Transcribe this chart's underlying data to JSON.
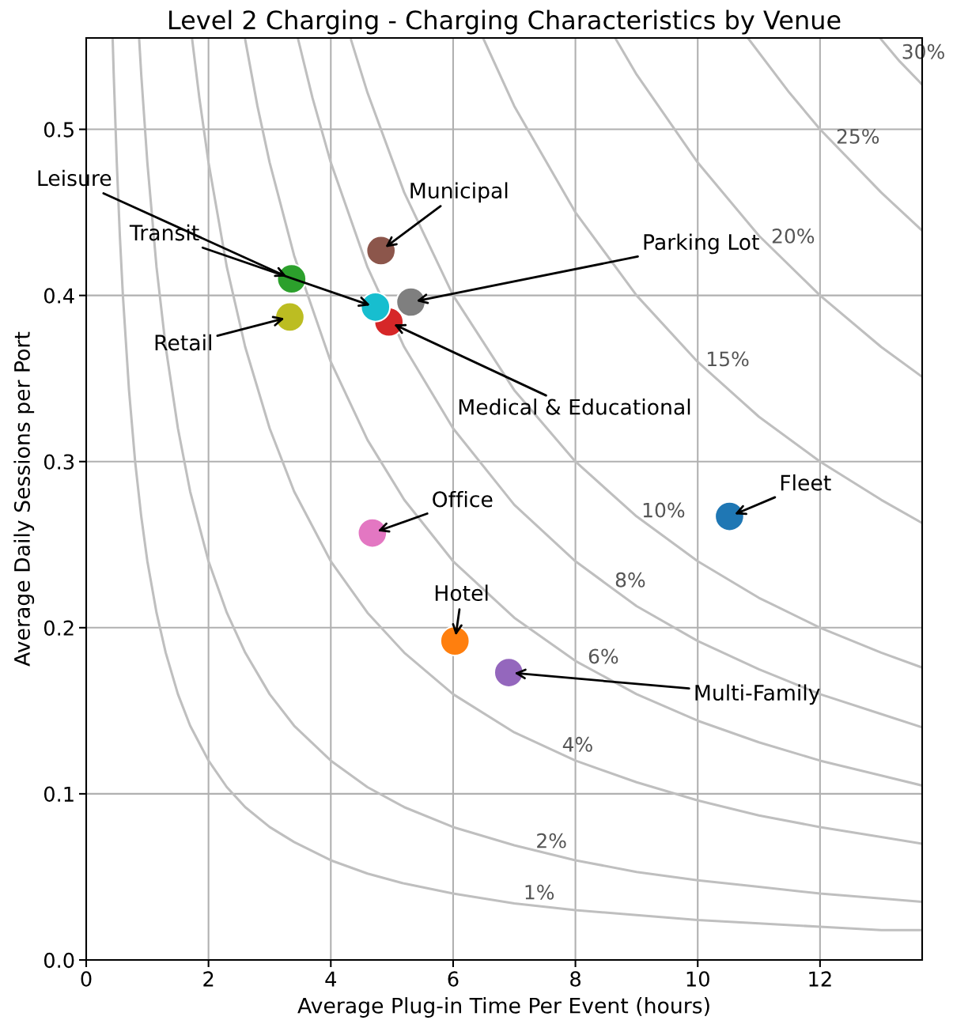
{
  "chart_data": {
    "type": "scatter",
    "title": "Level 2 Charging - Charging Characteristics by Venue",
    "xlabel": "Average Plug-in Time Per Event (hours)",
    "ylabel": "Average Daily Sessions per Port",
    "xlim": [
      0,
      13.67
    ],
    "ylim": [
      0,
      0.555
    ],
    "xticks": [
      0,
      2,
      4,
      6,
      8,
      10,
      12
    ],
    "yticks": [
      {
        "value": 0,
        "label": "0.0"
      },
      0.1,
      0.2,
      0.3,
      0.4,
      0.5
    ],
    "grid": true,
    "series": [
      {
        "type": "line",
        "color": "#bfbfbf",
        "x": [
          0.433,
          0.45,
          0.5,
          0.55,
          0.6,
          0.7,
          0.8,
          0.9,
          1.0,
          1.15,
          1.3,
          1.5,
          1.7,
          2.0,
          2.3,
          2.6,
          3.0,
          3.4,
          4.0,
          4.6,
          5.2,
          6.0,
          7.0,
          8.0,
          9.0,
          10,
          11,
          12,
          13,
          13.67
        ],
        "values": [
          0.554,
          0.533,
          0.48,
          0.436,
          0.4,
          0.343,
          0.3,
          0.267,
          0.24,
          0.209,
          0.185,
          0.16,
          0.141,
          0.12,
          0.104,
          0.092,
          0.08,
          0.071,
          0.06,
          0.052,
          0.046,
          0.04,
          0.034,
          0.03,
          0.027,
          0.024,
          0.022,
          0.02,
          0.018,
          0.018
        ]
      },
      {
        "type": "line",
        "color": "#bfbfbf",
        "x": [
          0.865,
          0.9,
          1.0,
          1.15,
          1.3,
          1.5,
          1.7,
          2.0,
          2.3,
          2.6,
          3.0,
          3.4,
          4.0,
          4.6,
          5.2,
          6.0,
          7.0,
          8.0,
          9.0,
          10,
          11,
          12,
          13,
          13.67
        ],
        "values": [
          0.555,
          0.533,
          0.48,
          0.417,
          0.369,
          0.32,
          0.282,
          0.24,
          0.209,
          0.185,
          0.16,
          0.141,
          0.12,
          0.104,
          0.092,
          0.08,
          0.069,
          0.06,
          0.053,
          0.048,
          0.044,
          0.04,
          0.037,
          0.035
        ]
      },
      {
        "type": "line",
        "color": "#bfbfbf",
        "x": [
          1.73,
          1.85,
          2.0,
          2.3,
          2.6,
          3.0,
          3.4,
          4.0,
          4.6,
          5.2,
          6.0,
          7.0,
          8.0,
          9.0,
          10,
          11,
          12,
          13,
          13.67
        ],
        "values": [
          0.555,
          0.519,
          0.48,
          0.417,
          0.369,
          0.32,
          0.282,
          0.24,
          0.209,
          0.185,
          0.16,
          0.137,
          0.12,
          0.107,
          0.096,
          0.087,
          0.08,
          0.074,
          0.07
        ]
      },
      {
        "type": "line",
        "color": "#bfbfbf",
        "x": [
          2.6,
          2.8,
          3.0,
          3.4,
          4.0,
          4.6,
          5.2,
          6.0,
          7.0,
          8.0,
          9.0,
          10,
          11,
          12,
          13,
          13.67
        ],
        "values": [
          0.554,
          0.514,
          0.48,
          0.424,
          0.36,
          0.313,
          0.277,
          0.24,
          0.206,
          0.18,
          0.16,
          0.144,
          0.131,
          0.12,
          0.111,
          0.105
        ]
      },
      {
        "type": "line",
        "color": "#bfbfbf",
        "x": [
          3.46,
          3.7,
          4.0,
          4.6,
          5.2,
          6.0,
          7.0,
          8.0,
          9.0,
          10,
          11,
          12,
          13,
          13.67
        ],
        "values": [
          0.555,
          0.519,
          0.48,
          0.417,
          0.369,
          0.32,
          0.274,
          0.24,
          0.213,
          0.192,
          0.175,
          0.16,
          0.148,
          0.14
        ]
      },
      {
        "type": "line",
        "color": "#bfbfbf",
        "x": [
          4.33,
          4.6,
          5.2,
          6.0,
          7.0,
          8.0,
          9.0,
          10,
          11,
          12,
          13,
          13.67
        ],
        "values": [
          0.554,
          0.522,
          0.462,
          0.4,
          0.343,
          0.3,
          0.267,
          0.24,
          0.218,
          0.2,
          0.185,
          0.176
        ]
      },
      {
        "type": "line",
        "color": "#bfbfbf",
        "x": [
          6.49,
          7.0,
          8.0,
          9.0,
          10,
          11,
          12,
          13,
          13.67
        ],
        "values": [
          0.555,
          0.514,
          0.45,
          0.4,
          0.36,
          0.327,
          0.3,
          0.277,
          0.263
        ]
      },
      {
        "type": "line",
        "color": "#bfbfbf",
        "x": [
          8.65,
          9.0,
          10,
          11,
          12,
          13,
          13.67
        ],
        "values": [
          0.555,
          0.533,
          0.48,
          0.436,
          0.4,
          0.369,
          0.351
        ]
      },
      {
        "type": "line",
        "color": "#bfbfbf",
        "x": [
          10.82,
          11.5,
          12,
          13,
          13.67
        ],
        "values": [
          0.555,
          0.522,
          0.5,
          0.462,
          0.439
        ]
      },
      {
        "type": "line",
        "color": "#bfbfbf",
        "x": [
          12.98,
          13.3,
          13.67
        ],
        "values": [
          0.555,
          0.541,
          0.527
        ]
      },
      {
        "name": "Fleet",
        "color": "#1f77b4",
        "marker": "circle",
        "x": [
          10.52
        ],
        "values": [
          0.267
        ]
      },
      {
        "name": "Hotel",
        "color": "#ff7f0e",
        "marker": "circle",
        "x": [
          6.03
        ],
        "values": [
          0.192
        ]
      },
      {
        "name": "Leisure",
        "color": "#2ca02c",
        "marker": "circle",
        "x": [
          3.36
        ],
        "values": [
          0.41
        ]
      },
      {
        "name": "Medical & Educational",
        "color": "#d62728",
        "marker": "circle",
        "x": [
          4.95
        ],
        "values": [
          0.384
        ]
      },
      {
        "name": "Multi-Family",
        "color": "#9467bd",
        "marker": "circle",
        "x": [
          6.91
        ],
        "values": [
          0.173
        ]
      },
      {
        "name": "Municipal",
        "color": "#8c564b",
        "marker": "circle",
        "x": [
          4.82
        ],
        "values": [
          0.427
        ]
      },
      {
        "name": "Office",
        "color": "#e377c2",
        "marker": "circle",
        "x": [
          4.68
        ],
        "values": [
          0.257
        ]
      },
      {
        "name": "Parking Lot",
        "color": "#7f7f7f",
        "marker": "circle",
        "x": [
          5.31
        ],
        "values": [
          0.396
        ]
      },
      {
        "name": "Retail",
        "color": "#bcbd22",
        "marker": "circle",
        "x": [
          3.33
        ],
        "values": [
          0.387
        ]
      },
      {
        "name": "Transit",
        "color": "#17becf",
        "marker": "circle",
        "x": [
          4.73
        ],
        "values": [
          0.393
        ]
      }
    ],
    "annotations": [
      {
        "text": "1%",
        "x": 7.15,
        "y": 0.034
      },
      {
        "text": "2%",
        "x": 7.35,
        "y": 0.065
      },
      {
        "text": "4%",
        "x": 7.78,
        "y": 0.123
      },
      {
        "text": "6%",
        "x": 8.2,
        "y": 0.176
      },
      {
        "text": "8%",
        "x": 8.64,
        "y": 0.222
      },
      {
        "text": "10%",
        "x": 9.08,
        "y": 0.264
      },
      {
        "text": "15%",
        "x": 10.13,
        "y": 0.355
      },
      {
        "text": "20%",
        "x": 11.2,
        "y": 0.429
      },
      {
        "text": "25%",
        "x": 12.26,
        "y": 0.489
      },
      {
        "text": "30%",
        "x": 13.33,
        "y": 0.54
      }
    ]
  }
}
